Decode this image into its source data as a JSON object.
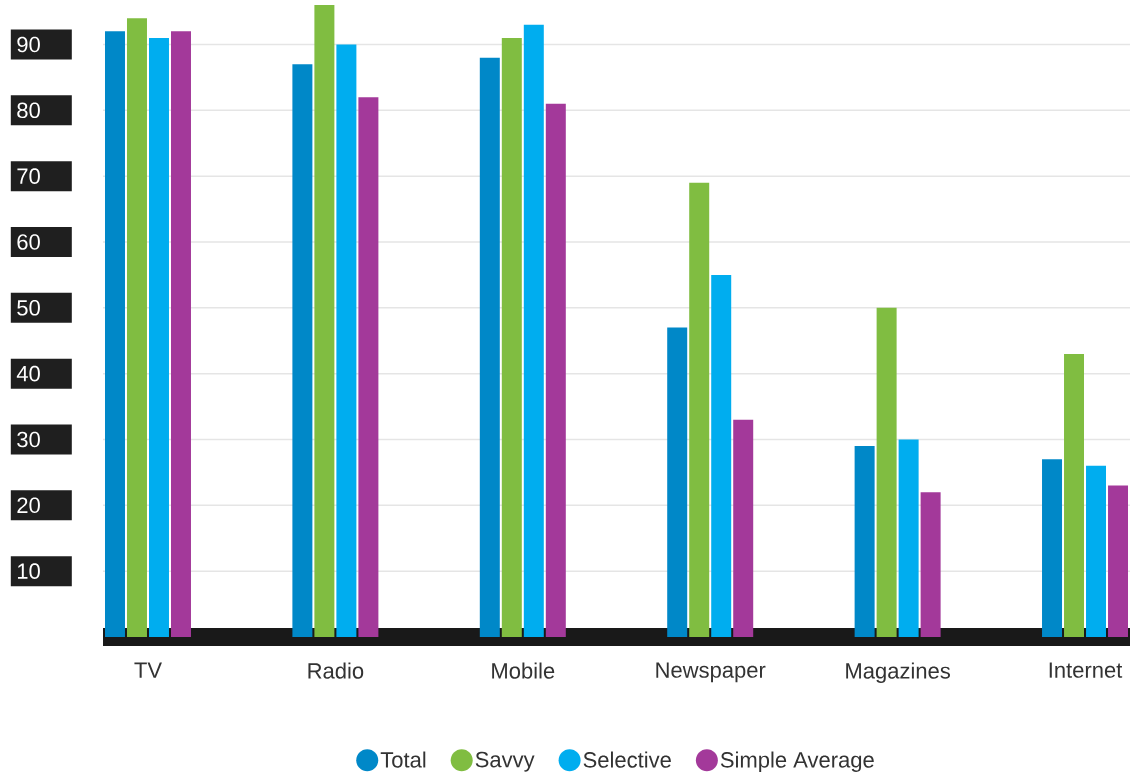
{
  "chart_data": {
    "type": "bar",
    "categories": [
      "TV",
      "Radio",
      "Mobile",
      "Newspaper",
      "Magazines",
      "Internet"
    ],
    "series": [
      {
        "name": "Total",
        "color": "#0088c8",
        "values": [
          92,
          87,
          88,
          47,
          29,
          27
        ]
      },
      {
        "name": "Savvy",
        "color": "#80bd41",
        "values": [
          94,
          96,
          91,
          69,
          50,
          43
        ]
      },
      {
        "name": "Selective",
        "color": "#00adef",
        "values": [
          91,
          90,
          93,
          55,
          30,
          26
        ]
      },
      {
        "name": "Simple Average",
        "color": "#a3399a",
        "values": [
          92,
          82,
          81,
          33,
          22,
          23
        ]
      }
    ],
    "ylim": [
      0,
      96
    ],
    "yticks": [
      10,
      20,
      30,
      40,
      50,
      60,
      70,
      80,
      90
    ],
    "grid": "y",
    "legend": "bottom"
  }
}
